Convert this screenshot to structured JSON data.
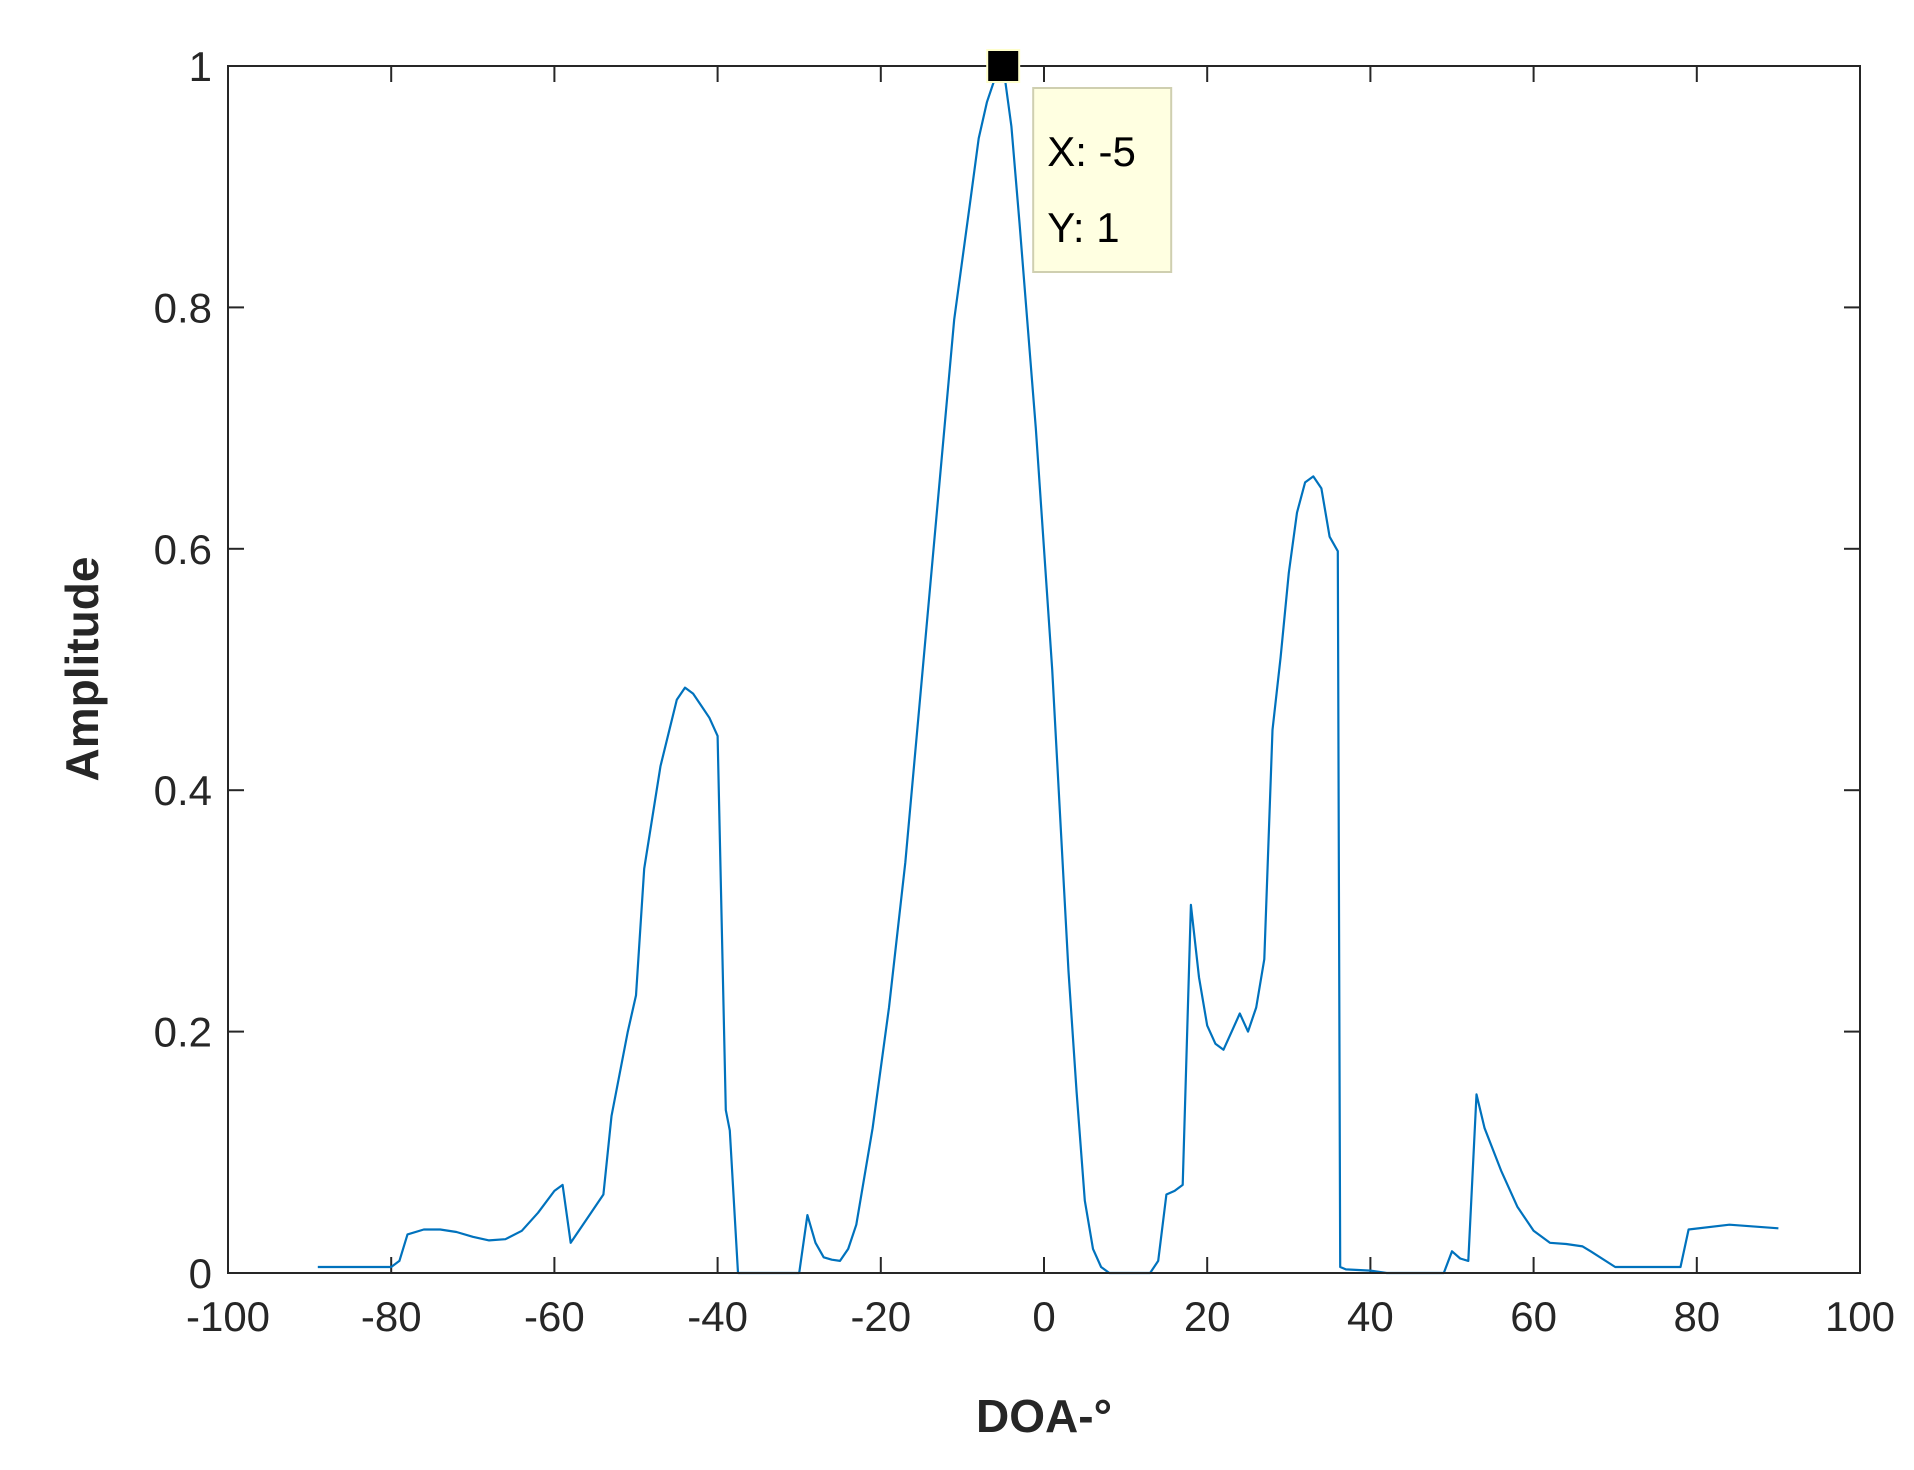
{
  "chart_data": {
    "type": "line",
    "xlabel": "DOA-°",
    "ylabel": "Amplitude",
    "xlim": [
      -100,
      100
    ],
    "ylim": [
      0,
      1
    ],
    "xticks": [
      "-100",
      "-80",
      "-60",
      "-40",
      "-20",
      "0",
      "20",
      "40",
      "60",
      "80",
      "100"
    ],
    "yticks": [
      "0",
      "0.2",
      "0.4",
      "0.6",
      "0.8",
      "1"
    ],
    "grid": false,
    "box": true,
    "series": [
      {
        "color": "#0072BD",
        "x": [
          -89,
          -85,
          -80,
          -79,
          -78,
          -76,
          -74,
          -72,
          -70,
          -68,
          -66,
          -64,
          -62,
          -60,
          -59,
          -58,
          -56,
          -55,
          -54,
          -53,
          -51,
          -50,
          -49,
          -47,
          -45,
          -44,
          -43,
          -42,
          -41,
          -40,
          -39,
          -38.5,
          -37.5,
          -36.5,
          -35,
          -33,
          -30,
          -29,
          -28,
          -27,
          -26,
          -25,
          -24,
          -23,
          -21,
          -19,
          -17,
          -15,
          -13,
          -11,
          -9,
          -8,
          -7,
          -6,
          -5,
          -4,
          -3,
          -1,
          1,
          3,
          4,
          5,
          6,
          7,
          8,
          10,
          12,
          13,
          14,
          15,
          16,
          17,
          18,
          19,
          20,
          21,
          22,
          23,
          24,
          25,
          26,
          27,
          28,
          29,
          30,
          31,
          32,
          33,
          34,
          35,
          36,
          36.3,
          37,
          40,
          42,
          44,
          47,
          49,
          50,
          51,
          52,
          53,
          54,
          56,
          58,
          60,
          62,
          64,
          66,
          67,
          70,
          78,
          79,
          84,
          90
        ],
        "y": [
          0.005,
          0.005,
          0.005,
          0.01,
          0.032,
          0.036,
          0.036,
          0.034,
          0.03,
          0.027,
          0.028,
          0.035,
          0.05,
          0.068,
          0.073,
          0.025,
          0.045,
          0.055,
          0.065,
          0.13,
          0.2,
          0.23,
          0.335,
          0.42,
          0.475,
          0.485,
          0.48,
          0.47,
          0.46,
          0.445,
          0.135,
          0.118,
          0.0,
          0.0,
          0.0,
          0.0,
          0.0,
          0.048,
          0.025,
          0.013,
          0.011,
          0.01,
          0.02,
          0.04,
          0.12,
          0.22,
          0.34,
          0.49,
          0.64,
          0.79,
          0.89,
          0.94,
          0.97,
          0.99,
          1.0,
          0.95,
          0.87,
          0.7,
          0.5,
          0.25,
          0.15,
          0.06,
          0.02,
          0.005,
          0.0,
          0.0,
          0.0,
          0.0,
          0.01,
          0.065,
          0.068,
          0.073,
          0.305,
          0.245,
          0.205,
          0.19,
          0.185,
          0.2,
          0.215,
          0.2,
          0.22,
          0.26,
          0.45,
          0.51,
          0.58,
          0.63,
          0.655,
          0.66,
          0.65,
          0.61,
          0.598,
          0.005,
          0.003,
          0.002,
          0.0,
          0.0,
          0.0,
          0.0,
          0.018,
          0.012,
          0.01,
          0.148,
          0.12,
          0.085,
          0.055,
          0.035,
          0.025,
          0.024,
          0.022,
          0.018,
          0.005,
          0.005,
          0.036,
          0.04,
          0.037
        ]
      }
    ],
    "annotation": {
      "x": -5,
      "y": 1,
      "lines": [
        "X: -5",
        "Y: 1"
      ]
    }
  }
}
